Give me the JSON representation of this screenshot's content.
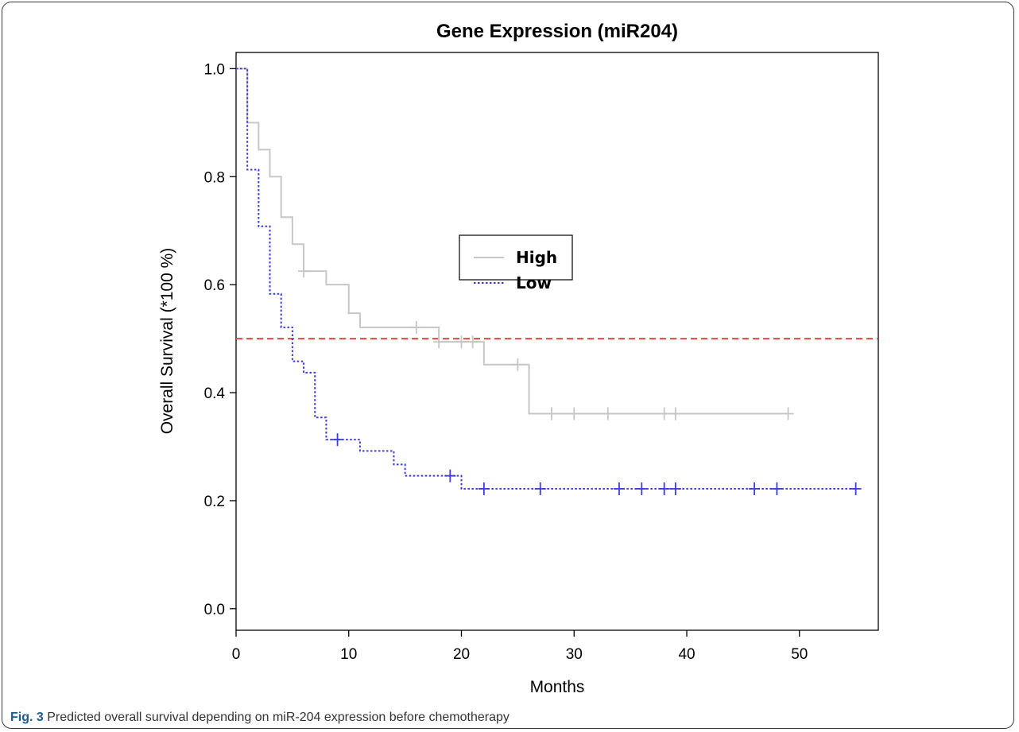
{
  "caption": {
    "label": "Fig. 3",
    "text": "Predicted overall survival depending on miR-204 expression before chemotherapy"
  },
  "chart_data": {
    "type": "line",
    "title": "Gene Expression (miR204)",
    "xlabel": "Months",
    "ylabel": "Overall Survival (*100 %)",
    "xlim": [
      0,
      57
    ],
    "ylim": [
      -0.04,
      1.03
    ],
    "xticks": [
      0,
      10,
      20,
      30,
      40,
      50
    ],
    "yticks": [
      0.0,
      0.2,
      0.4,
      0.6,
      0.8,
      1.0
    ],
    "ytick_labels": [
      "0.0",
      "0.2",
      "0.4",
      "0.6",
      "0.8",
      "1.0"
    ],
    "legend": {
      "position": "center"
    },
    "reference_line": {
      "y": 0.5,
      "color": "#e8473f",
      "style": "dashed"
    },
    "series": [
      {
        "name": "High",
        "color": "#c6c6c6",
        "style": "solid",
        "steps": [
          [
            0,
            1.0
          ],
          [
            1,
            0.9
          ],
          [
            2,
            0.85
          ],
          [
            3,
            0.8
          ],
          [
            4,
            0.725
          ],
          [
            5,
            0.675
          ],
          [
            6,
            0.625
          ],
          [
            8,
            0.6
          ],
          [
            10,
            0.547
          ],
          [
            11,
            0.521
          ],
          [
            18,
            0.494
          ],
          [
            22,
            0.452
          ],
          [
            26,
            0.361
          ]
        ],
        "end_x": 49,
        "censored": [
          [
            6,
            0.625
          ],
          [
            16,
            0.521
          ],
          [
            18,
            0.494
          ],
          [
            20,
            0.494
          ],
          [
            21,
            0.494
          ],
          [
            25,
            0.452
          ],
          [
            28,
            0.361
          ],
          [
            30,
            0.361
          ],
          [
            33,
            0.361
          ],
          [
            38,
            0.361
          ],
          [
            39,
            0.361
          ],
          [
            49,
            0.361
          ]
        ]
      },
      {
        "name": "Low",
        "color": "#3c3cd8",
        "style": "dotted",
        "steps": [
          [
            0,
            1.0
          ],
          [
            1,
            0.813
          ],
          [
            2,
            0.708
          ],
          [
            3,
            0.583
          ],
          [
            4,
            0.521
          ],
          [
            5,
            0.458
          ],
          [
            6,
            0.437
          ],
          [
            7,
            0.354
          ],
          [
            8,
            0.313
          ],
          [
            11,
            0.292
          ],
          [
            14,
            0.267
          ],
          [
            15,
            0.246
          ],
          [
            20,
            0.222
          ]
        ],
        "end_x": 55,
        "censored": [
          [
            9,
            0.313
          ],
          [
            19,
            0.246
          ],
          [
            22,
            0.222
          ],
          [
            27,
            0.222
          ],
          [
            34,
            0.222
          ],
          [
            36,
            0.222
          ],
          [
            38,
            0.222
          ],
          [
            39,
            0.222
          ],
          [
            46,
            0.222
          ],
          [
            48,
            0.222
          ],
          [
            55,
            0.222
          ]
        ]
      }
    ]
  }
}
